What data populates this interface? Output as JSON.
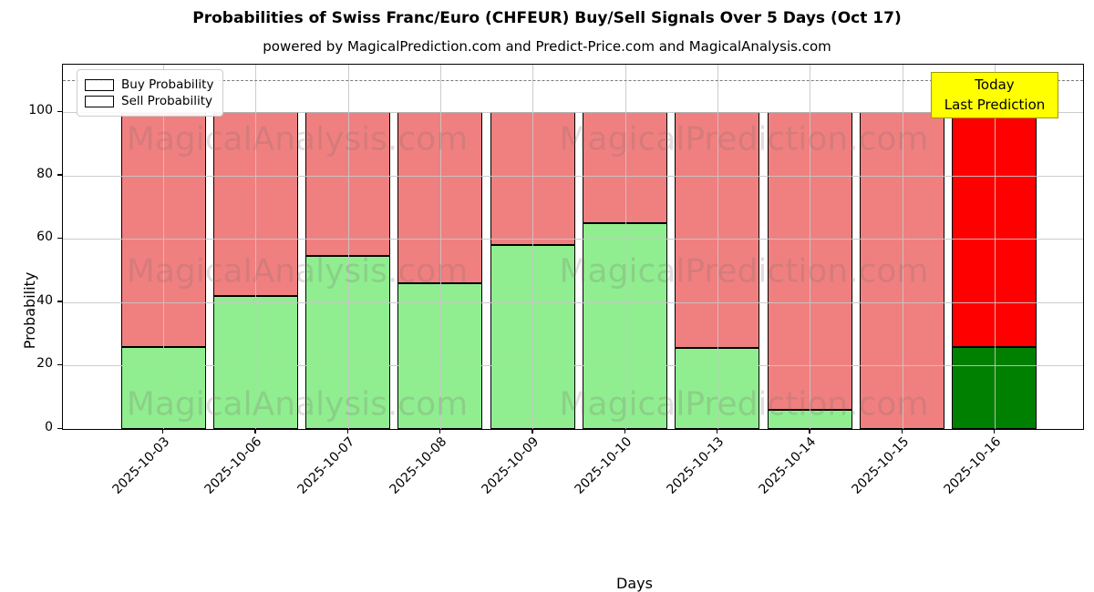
{
  "chart_data": {
    "type": "bar",
    "stacked": true,
    "title": "Probabilities of Swiss Franc/Euro (CHFEUR) Buy/Sell Signals Over 5 Days (Oct 17)",
    "subtitle": "powered by MagicalPrediction.com and Predict-Price.com and MagicalAnalysis.com",
    "xlabel": "Days",
    "ylabel": "Probability",
    "ylim": [
      0,
      115
    ],
    "yticks": [
      0,
      20,
      40,
      60,
      80,
      100
    ],
    "grid": "on",
    "dashed_threshold_y": 110,
    "categories": [
      "2025-10-03",
      "2025-10-06",
      "2025-10-07",
      "2025-10-08",
      "2025-10-09",
      "2025-10-10",
      "2025-10-13",
      "2025-10-14",
      "2025-10-15",
      "2025-10-16"
    ],
    "series": [
      {
        "name": "Buy Probability",
        "color": "#90EE90",
        "values": [
          26,
          42,
          54.5,
          46,
          58,
          65,
          25.5,
          6,
          0,
          26
        ]
      },
      {
        "name": "Sell Probability",
        "color": "#F08080",
        "values": [
          74,
          58,
          45.5,
          54,
          42,
          35,
          74.5,
          94,
          100,
          74
        ]
      }
    ],
    "legend": {
      "position": "upper left",
      "entries": [
        "Buy Probability",
        "Sell Probability"
      ]
    },
    "today_bar": {
      "category": "2025-10-16",
      "index": 9,
      "buy_color": "#008000",
      "sell_color": "#FF0000"
    },
    "annotation": {
      "line1": "Today",
      "line2": "Last Prediction",
      "bg_color": "#FFFF00"
    },
    "watermarks": {
      "left_text": "MagicalAnalysis.com",
      "right_text": "MagicalPrediction.com"
    }
  }
}
